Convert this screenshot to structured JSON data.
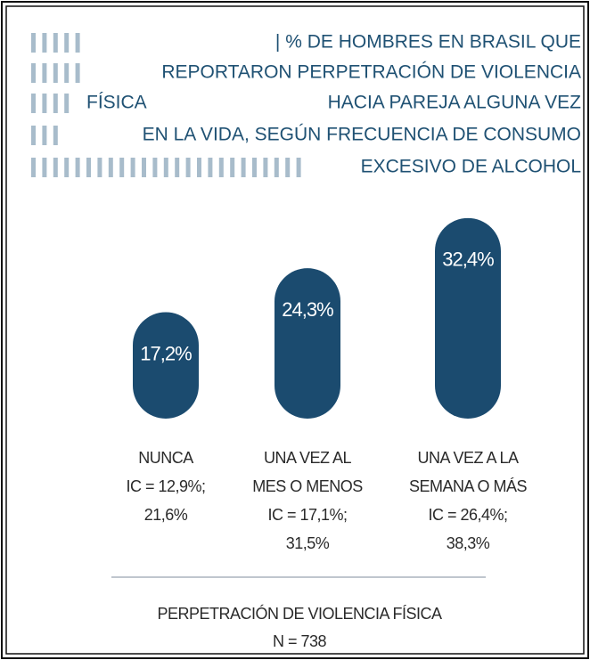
{
  "chart_data": {
    "type": "bar",
    "title_lines": [
      [
        "| % DE HOMBRES EN BRASIL QUE"
      ],
      [
        "REPORTARON PERPETRACIÓN DE VIOLENCIA"
      ],
      [
        "FÍSICA",
        "HACIA PAREJA ALGUNA VEZ"
      ],
      [
        "EN LA VIDA, SEGÚN FRECUENCIA DE CONSUMO"
      ],
      [
        "EXCESIVO DE ALCOHOL"
      ]
    ],
    "categories": [
      [
        "NUNCA"
      ],
      [
        "UNA VEZ AL",
        "MES O MENOS"
      ],
      [
        "UNA VEZ A LA",
        "SEMANA O MÁS"
      ]
    ],
    "values": [
      17.2,
      24.3,
      32.4
    ],
    "value_labels": [
      "17,2%",
      "24,3%",
      "32,4%"
    ],
    "ci_labels": [
      [
        "IC = 12,9%;",
        "21,6%"
      ],
      [
        "IC = 17,1%;",
        "31,5%"
      ],
      [
        "IC = 26,4%;",
        "38,3%"
      ]
    ],
    "color": "#1b4b6f",
    "footer": [
      "PERPETRACIÓN DE VIOLENCIA FÍSICA",
      "N = 738"
    ]
  }
}
